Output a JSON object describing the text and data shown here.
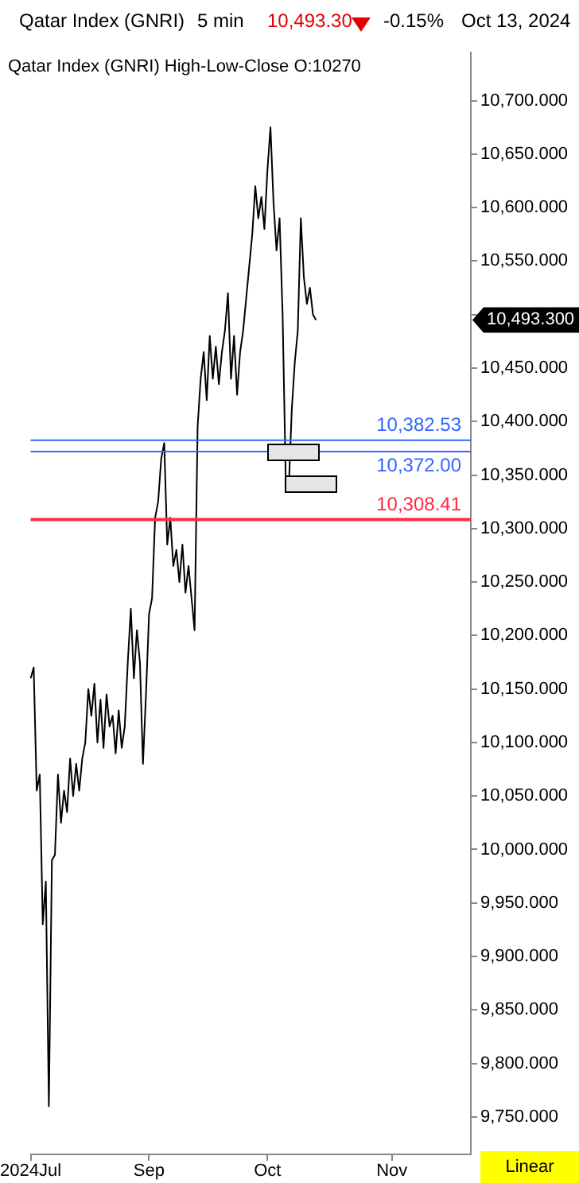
{
  "chart_data": {
    "type": "line",
    "title": "Qatar Index  (GNRI)",
    "subtitle": "Qatar Index (GNRI)  High-Low-Close     O:10270",
    "annotations": [
      "5 min",
      "10,493.30",
      "-0.15%",
      "Oct 13, 2024",
      "Linear",
      "10,493.300"
    ],
    "categories": [
      "2024Jul",
      null,
      null,
      null,
      null,
      null,
      null,
      null,
      null,
      null,
      null,
      null,
      null,
      null,
      null,
      null,
      null,
      null,
      null,
      null,
      null,
      null,
      null,
      null,
      null,
      null,
      null,
      null,
      null,
      null,
      null,
      null,
      null,
      null,
      null,
      null,
      null,
      null,
      null,
      "Sep",
      null,
      null,
      null,
      null,
      null,
      null,
      null,
      null,
      null,
      null,
      null,
      null,
      null,
      null,
      null,
      null,
      null,
      null,
      null,
      null,
      null,
      null,
      null,
      null,
      null,
      null,
      null,
      null,
      null,
      null,
      null,
      null,
      null,
      null,
      null,
      null,
      null,
      null,
      "Oct",
      null,
      null,
      null,
      null,
      null,
      null,
      null,
      null,
      null,
      null,
      null,
      null,
      null,
      null,
      null,
      null,
      null,
      null,
      null,
      null,
      null,
      null,
      null,
      null,
      null,
      null,
      null,
      null,
      null,
      null,
      null,
      null,
      null,
      null,
      null,
      null,
      null,
      null,
      null,
      null,
      "Nov",
      null,
      null,
      null,
      null,
      null,
      null,
      null,
      null,
      null,
      null,
      null,
      null,
      null,
      null,
      null,
      null,
      null,
      null,
      null,
      null,
      null,
      null,
      null,
      null,
      null,
      null
    ],
    "series": [
      {
        "color": "#000000",
        "values": [
          10160,
          10170,
          10055,
          10070,
          9930,
          9970,
          9760,
          9990,
          9995,
          10070,
          10025,
          10055,
          10035,
          10085,
          10050,
          10080,
          10055,
          10085,
          10100,
          10150,
          10125,
          10155,
          10100,
          10140,
          10095,
          10145,
          10115,
          10125,
          10090,
          10130,
          10095,
          10115,
          10175,
          10225,
          10160,
          10205,
          10175,
          10080,
          10145,
          10220,
          10235,
          10310,
          10325,
          10365,
          10380,
          10285,
          10310,
          10265,
          10280,
          10250,
          10285,
          10240,
          10265,
          10235,
          10205,
          10395,
          10440,
          10465,
          10420,
          10480,
          10440,
          10470,
          10435,
          10465,
          10485,
          10520,
          10440,
          10480,
          10425,
          10465,
          10485,
          10515,
          10545,
          10575,
          10620,
          10590,
          10610,
          10580,
          10635,
          10675,
          10605,
          10560,
          10590,
          10500,
          10350,
          10335,
          10410,
          10455,
          10485,
          10590,
          10535,
          10510,
          10525,
          10500,
          10495,
          null,
          null,
          null,
          null,
          null,
          null,
          null,
          null,
          null,
          null,
          null,
          null,
          null,
          null,
          null,
          null,
          null,
          null,
          null,
          null,
          null,
          null,
          null,
          null,
          null,
          null,
          null,
          null,
          null,
          null,
          null,
          null,
          null,
          null,
          null,
          null,
          null,
          null,
          null,
          null,
          null,
          null,
          null,
          null,
          null,
          null,
          null,
          null,
          null,
          null,
          null
        ]
      }
    ],
    "ylim": [
      9715,
      10745
    ],
    "yticks": [
      {
        "value": 9750,
        "label": "9,750.000"
      },
      {
        "value": 9800,
        "label": "9,800.000"
      },
      {
        "value": 9850,
        "label": "9,850.000"
      },
      {
        "value": 9900,
        "label": "9,900.000"
      },
      {
        "value": 9950,
        "label": "9,950.000"
      },
      {
        "value": 10000,
        "label": "10,000.000"
      },
      {
        "value": 10050,
        "label": "10,050.000"
      },
      {
        "value": 10100,
        "label": "10,100.000"
      },
      {
        "value": 10150,
        "label": "10,150.000"
      },
      {
        "value": 10200,
        "label": "10,200.000"
      },
      {
        "value": 10250,
        "label": "10,250.000"
      },
      {
        "value": 10300,
        "label": "10,300.000"
      },
      {
        "value": 10350,
        "label": "10,350.000"
      },
      {
        "value": 10400,
        "label": "10,400.000"
      },
      {
        "value": 10450,
        "label": "10,450.000"
      },
      {
        "value": 10500,
        "label": null
      },
      {
        "value": 10550,
        "label": "10,550.000"
      },
      {
        "value": 10600,
        "label": "10,600.000"
      },
      {
        "value": 10650,
        "label": "10,650.000"
      },
      {
        "value": 10700,
        "label": "10,700.000"
      }
    ],
    "ref_lines": [
      {
        "axis": "y",
        "value": 10382.53,
        "label": "10,382.53",
        "color": "#3366ff"
      },
      {
        "axis": "y",
        "value": 10372.0,
        "label": "10,372.00",
        "color": "#3366ff"
      },
      {
        "axis": "y",
        "value": 10308.41,
        "label": "10,308.41",
        "color": "#ff2a44"
      }
    ],
    "marker": "none",
    "line_style": "solid",
    "legend": false
  }
}
